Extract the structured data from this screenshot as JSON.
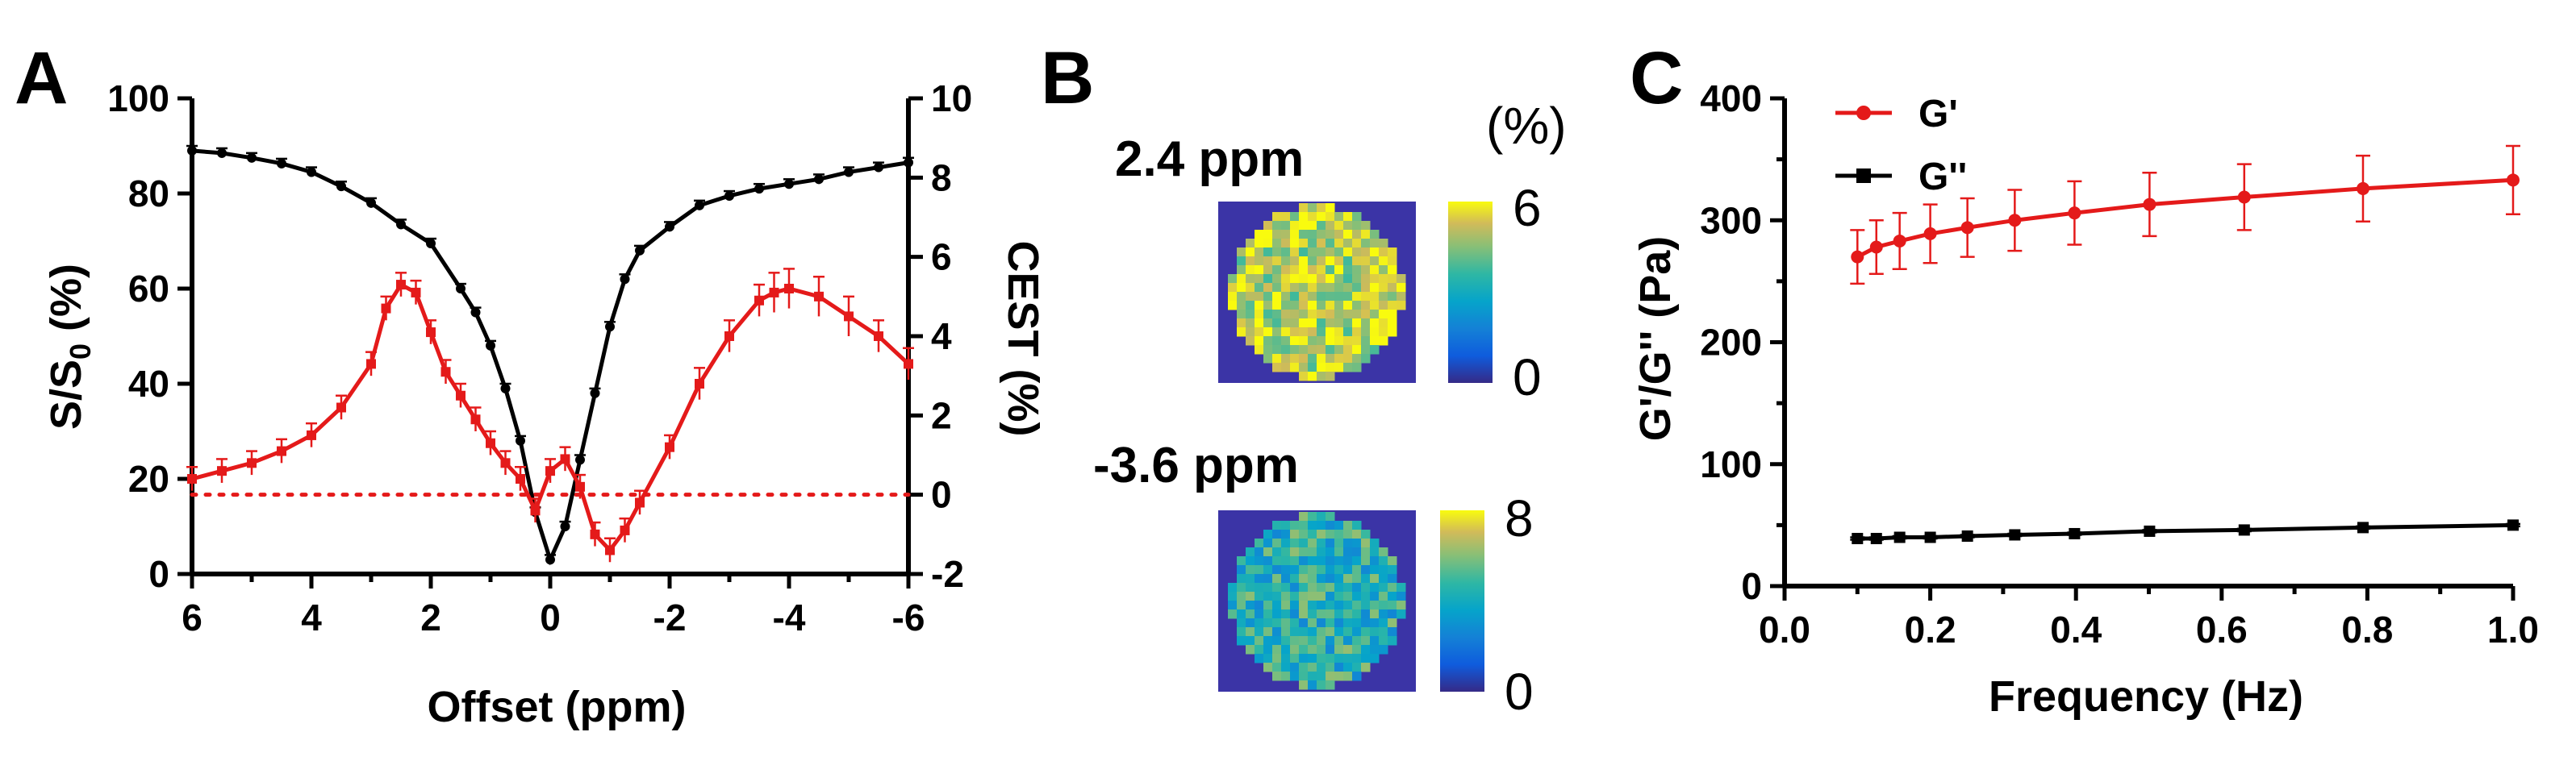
{
  "panels": {
    "a": {
      "letter": "A"
    },
    "b": {
      "letter": "B"
    },
    "c": {
      "letter": "C"
    }
  },
  "chart_data": [
    {
      "panel": "A",
      "type": "line",
      "xlabel": "Offset (ppm)",
      "ylabel_left": "S/S0 (%)",
      "ylabel_left_main": "S/S",
      "ylabel_left_sub": "0",
      "ylabel_left_tail": " (%)",
      "ylabel_right": "CEST (%)",
      "xlim": [
        6,
        -6
      ],
      "ylim_left": [
        0,
        100
      ],
      "ylim_right": [
        -2,
        10
      ],
      "x_ticks": [
        6,
        4,
        2,
        0,
        -2,
        -4,
        -6
      ],
      "x_tick_labels": [
        "6",
        "4",
        "2",
        "0",
        "-2",
        "-4",
        "-6"
      ],
      "y_left_ticks": [
        0,
        20,
        40,
        60,
        80,
        100
      ],
      "y_left_tick_labels": [
        "0",
        "20",
        "40",
        "60",
        "80",
        "100"
      ],
      "y_right_ticks": [
        -2,
        0,
        2,
        4,
        6,
        8,
        10
      ],
      "y_right_tick_labels": [
        "-2",
        "0",
        "2",
        "4",
        "6",
        "8",
        "10"
      ],
      "grid": false,
      "series": [
        {
          "axis": "left",
          "color": "#000000",
          "x": [
            6.0,
            5.5,
            5.0,
            4.5,
            4.0,
            3.5,
            3.0,
            2.5,
            2.0,
            1.5,
            1.25,
            1.0,
            0.75,
            0.5,
            0.25,
            0.0,
            -0.25,
            -0.5,
            -0.75,
            -1.0,
            -1.25,
            -1.5,
            -2.0,
            -2.5,
            -3.0,
            -3.5,
            -4.0,
            -4.5,
            -5.0,
            -5.5,
            -6.0
          ],
          "y": [
            89,
            88.5,
            87.5,
            86.3,
            84.5,
            81.5,
            78,
            73.5,
            69.5,
            60,
            55,
            48,
            39,
            28,
            13,
            3,
            10,
            24,
            38,
            52,
            62,
            68,
            73,
            77.5,
            79.5,
            81,
            82,
            83,
            84.5,
            85.5,
            86.5
          ],
          "errors": [
            1,
            1,
            1,
            1,
            1,
            1,
            1,
            1,
            1,
            1,
            1,
            1,
            1,
            1,
            1,
            1,
            1,
            1,
            1,
            1,
            1,
            1,
            1,
            1,
            1,
            1,
            1,
            1,
            1,
            1,
            1
          ]
        },
        {
          "axis": "right",
          "color": "#e41a1a",
          "x": [
            6.0,
            5.5,
            5.0,
            4.5,
            4.0,
            3.5,
            3.0,
            2.75,
            2.5,
            2.25,
            2.0,
            1.75,
            1.5,
            1.25,
            1.0,
            0.75,
            0.5,
            0.25,
            0.0,
            -0.25,
            -0.5,
            -0.75,
            -1.0,
            -1.25,
            -1.5,
            -2.0,
            -2.5,
            -3.0,
            -3.5,
            -3.75,
            -4.0,
            -4.5,
            -5.0,
            -5.5,
            -6.0
          ],
          "y": [
            0.4,
            0.6,
            0.8,
            1.1,
            1.5,
            2.2,
            3.3,
            4.7,
            5.3,
            5.1,
            4.1,
            3.1,
            2.5,
            1.9,
            1.3,
            0.8,
            0.4,
            -0.4,
            0.6,
            0.9,
            0.2,
            -1.0,
            -1.4,
            -0.9,
            -0.2,
            1.2,
            2.8,
            4.0,
            4.9,
            5.1,
            5.2,
            5.0,
            4.5,
            4.0,
            3.3
          ],
          "errors": [
            0.3,
            0.3,
            0.3,
            0.3,
            0.3,
            0.3,
            0.3,
            0.3,
            0.3,
            0.3,
            0.3,
            0.3,
            0.3,
            0.3,
            0.3,
            0.3,
            0.3,
            0.3,
            0.3,
            0.3,
            0.3,
            0.3,
            0.3,
            0.3,
            0.3,
            0.3,
            0.4,
            0.4,
            0.4,
            0.5,
            0.5,
            0.5,
            0.5,
            0.4,
            0.4
          ]
        }
      ],
      "reference_line": {
        "axis": "right",
        "y": 0,
        "style": "dotted",
        "color": "#e41a1a"
      }
    },
    {
      "panel": "B",
      "type": "heatmap",
      "unit_label": "(%)",
      "maps": [
        {
          "label": "2.4 ppm",
          "colorbar_min": "0",
          "colorbar_max": "6",
          "grid_size": 20,
          "mean_level": 0.85
        },
        {
          "label": "-3.6 ppm",
          "colorbar_min": "0",
          "colorbar_max": "8",
          "grid_size": 20,
          "mean_level": 0.55
        }
      ],
      "background_color": "#3b34a6"
    },
    {
      "panel": "C",
      "type": "line",
      "xlabel": "Frequency (Hz)",
      "ylabel": "G'/G'' (Pa)",
      "xlim": [
        0.0,
        1.0
      ],
      "ylim": [
        0,
        400
      ],
      "x_ticks": [
        0.0,
        0.2,
        0.4,
        0.6,
        0.8,
        1.0
      ],
      "x_tick_labels": [
        "0.0",
        "0.2",
        "0.4",
        "0.6",
        "0.8",
        "1.0"
      ],
      "y_ticks": [
        0,
        100,
        200,
        300,
        400
      ],
      "y_tick_labels": [
        "0",
        "100",
        "200",
        "300",
        "400"
      ],
      "legend_position": "top-left",
      "grid": false,
      "series": [
        {
          "name": "G'",
          "color": "#e41a1a",
          "marker": "circle",
          "x": [
            0.1,
            0.126,
            0.158,
            0.2,
            0.251,
            0.316,
            0.398,
            0.501,
            0.631,
            0.794,
            1.0
          ],
          "y": [
            270,
            278,
            283,
            289,
            294,
            300,
            306,
            313,
            319,
            326,
            333
          ],
          "errors": [
            22,
            22,
            23,
            24,
            24,
            25,
            26,
            26,
            27,
            27,
            28
          ]
        },
        {
          "name": "G''",
          "color": "#000000",
          "marker": "square",
          "x": [
            0.1,
            0.126,
            0.158,
            0.2,
            0.251,
            0.316,
            0.398,
            0.501,
            0.631,
            0.794,
            1.0
          ],
          "y": [
            39,
            39,
            40,
            40,
            41,
            42,
            43,
            45,
            46,
            48,
            50
          ],
          "errors": [
            1,
            1,
            1,
            1,
            1,
            1,
            1,
            1,
            1,
            1,
            1
          ]
        }
      ]
    }
  ]
}
